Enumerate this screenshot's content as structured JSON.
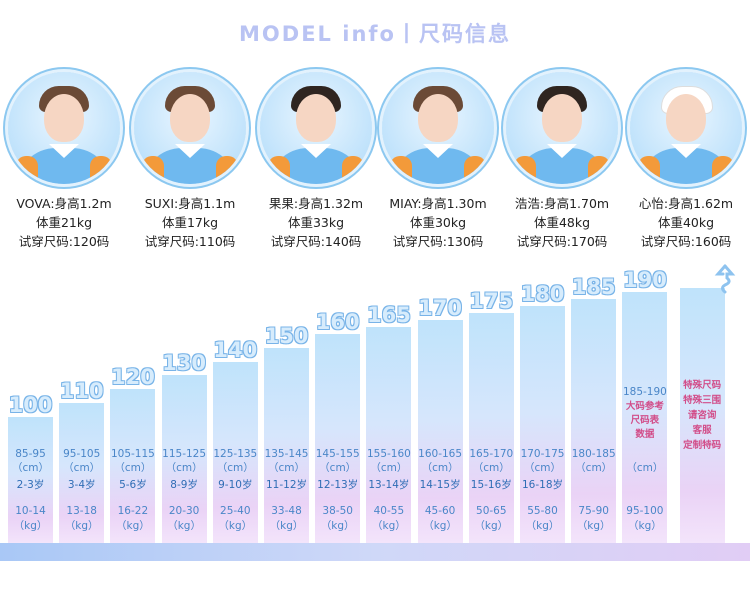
{
  "title": "MODEL  info丨尺码信息",
  "models": [
    {
      "name_line": "VOVA:身高1.2m",
      "weight": "体重21kg",
      "size": "试穿尺码:120码"
    },
    {
      "name_line": "SUXI:身高1.1m",
      "weight": "体重17kg",
      "size": "试穿尺码:110码"
    },
    {
      "name_line": "果果:身高1.32m",
      "weight": "体重33kg",
      "size": "试穿尺码:140码"
    },
    {
      "name_line": "MIAY:身高1.30m",
      "weight": "体重30kg",
      "size": "试穿尺码:130码"
    },
    {
      "name_line": "浩浩:身高1.70m",
      "weight": "体重48kg",
      "size": "试穿尺码:170码"
    },
    {
      "name_line": "心怡:身高1.62m",
      "weight": "体重40kg",
      "size": "试穿尺码:160码"
    }
  ],
  "chart_data": {
    "type": "bar",
    "categories": [
      "100",
      "110",
      "120",
      "130",
      "140",
      "150",
      "160",
      "165",
      "170",
      "175",
      "180",
      "185",
      "190"
    ],
    "series": [
      {
        "values": [
          100,
          110,
          120,
          130,
          140,
          150,
          160,
          165,
          170,
          175,
          180,
          185,
          190
        ]
      }
    ],
    "ylim": [
      0,
      190
    ],
    "heights_cm": [
      "85-95",
      "95-105",
      "105-115",
      "115-125",
      "125-135",
      "135-145",
      "145-155",
      "155-160",
      "160-165",
      "165-170",
      "170-175",
      "180-185",
      "185-190"
    ],
    "unit_cm": "（cm）",
    "ages": [
      "2-3岁",
      "3-4岁",
      "5-6岁",
      "8-9岁",
      "9-10岁",
      "11-12岁",
      "12-13岁",
      "13-14岁",
      "14-15岁",
      "15-16岁",
      "16-18岁",
      "",
      ""
    ],
    "weights_kg": [
      "10-14",
      "13-18",
      "16-22",
      "20-30",
      "25-40",
      "33-48",
      "38-50",
      "40-55",
      "45-60",
      "50-65",
      "55-80",
      "75-90",
      "95-100"
    ],
    "unit_kg": "（kg）",
    "note_190": [
      "大码参考",
      "尺码表",
      "数据"
    ],
    "special": [
      "特殊尺码",
      "特殊三围",
      "请咨询",
      "客服",
      "定制特码"
    ]
  }
}
